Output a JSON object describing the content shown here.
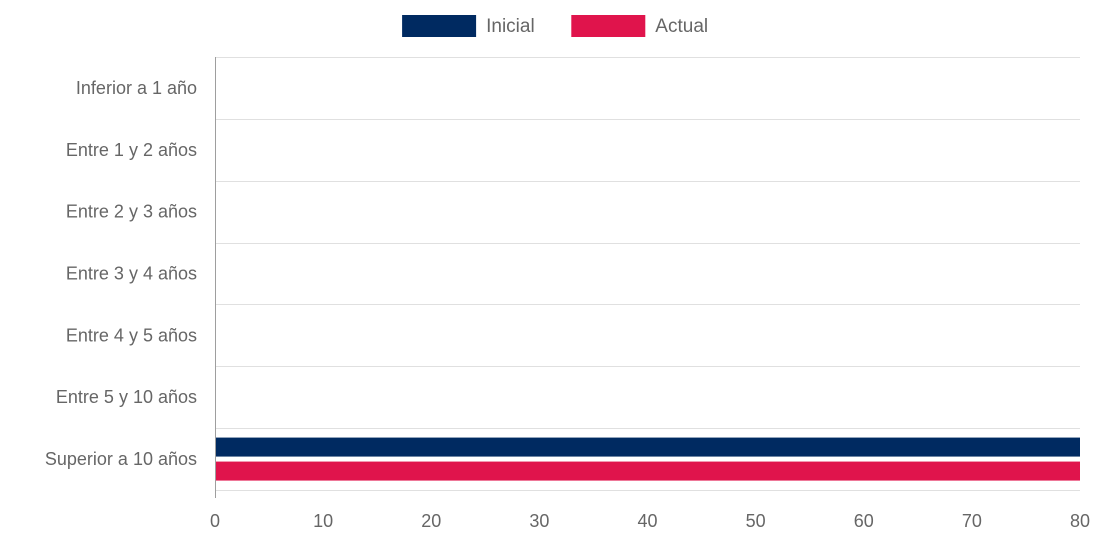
{
  "chart_data": {
    "type": "bar",
    "orientation": "horizontal",
    "categories": [
      "Inferior a 1 año",
      "Entre 1 y 2 años",
      "Entre 2 y 3 años",
      "Entre 3 y 4 años",
      "Entre 4 y 5 años",
      "Entre 5 y 10 años",
      "Superior a 10 años"
    ],
    "series": [
      {
        "name": "Inicial",
        "color": "#002a61",
        "values": [
          0,
          0,
          0,
          0,
          0,
          0,
          80
        ]
      },
      {
        "name": "Actual",
        "color": "#e0144c",
        "values": [
          0,
          0,
          0,
          0,
          0,
          0,
          80
        ]
      }
    ],
    "xlim": [
      0,
      80
    ],
    "xticks": [
      "0",
      "10",
      "20",
      "30",
      "40",
      "50",
      "60",
      "70",
      "80"
    ],
    "grid": true,
    "legend_position": "top-center",
    "title": "",
    "xlabel": "",
    "ylabel": ""
  }
}
